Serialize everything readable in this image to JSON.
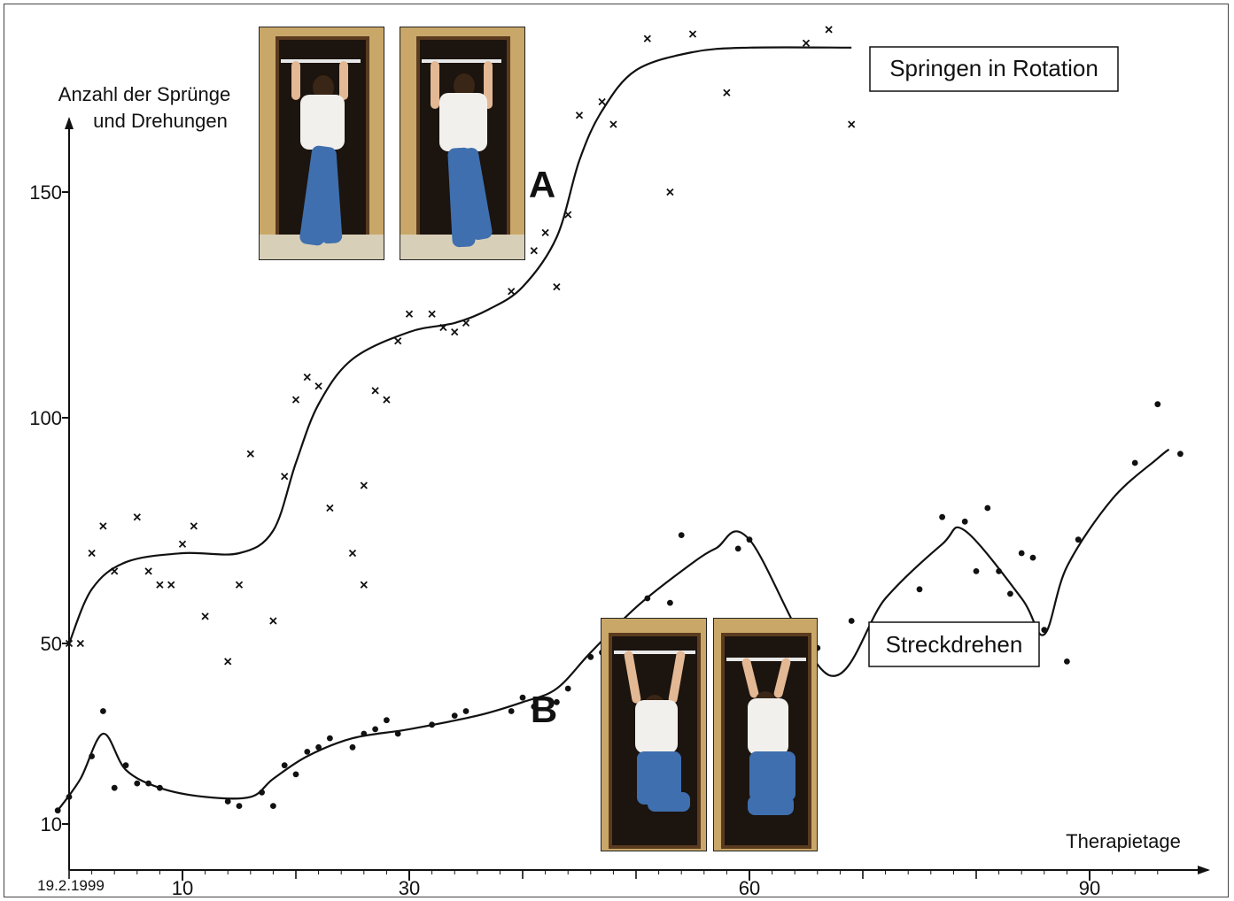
{
  "chart_data": {
    "type": "scatter",
    "ylabel_line1": "Anzahl der Sprünge",
    "ylabel_line2": "und Drehungen",
    "xlabel": "Therapietage",
    "x_ticks": [
      "10",
      "30",
      "60",
      "90"
    ],
    "x_tick_values": [
      10,
      30,
      60,
      90
    ],
    "x_start_label": "19.2.1999",
    "y_ticks": [
      "10",
      "50",
      "100",
      "150"
    ],
    "y_tick_values": [
      10,
      50,
      100,
      150
    ],
    "series": [
      {
        "name": "Springen in Rotation",
        "letter": "A",
        "marker": "x",
        "points": [
          [
            0,
            50
          ],
          [
            1,
            50
          ],
          [
            2,
            70
          ],
          [
            3,
            76
          ],
          [
            4,
            66
          ],
          [
            6,
            78
          ],
          [
            7,
            66
          ],
          [
            8,
            63
          ],
          [
            9,
            63
          ],
          [
            10,
            72
          ],
          [
            11,
            76
          ],
          [
            12,
            56
          ],
          [
            14,
            46
          ],
          [
            15,
            63
          ],
          [
            16,
            92
          ],
          [
            18,
            55
          ],
          [
            19,
            87
          ],
          [
            20,
            104
          ],
          [
            21,
            109
          ],
          [
            22,
            107
          ],
          [
            23,
            80
          ],
          [
            25,
            70
          ],
          [
            26,
            85
          ],
          [
            26,
            63
          ],
          [
            27,
            106
          ],
          [
            28,
            104
          ],
          [
            29,
            117
          ],
          [
            30,
            123
          ],
          [
            32,
            123
          ],
          [
            33,
            120
          ],
          [
            34,
            119
          ],
          [
            35,
            121
          ],
          [
            39,
            128
          ],
          [
            41,
            137
          ],
          [
            42,
            141
          ],
          [
            43,
            129
          ],
          [
            44,
            145
          ],
          [
            45,
            167
          ],
          [
            47,
            170
          ],
          [
            48,
            165
          ],
          [
            51,
            184
          ],
          [
            53,
            150
          ],
          [
            55,
            185
          ],
          [
            58,
            172
          ],
          [
            65,
            183
          ],
          [
            67,
            186
          ],
          [
            69,
            165
          ]
        ],
        "fit": [
          [
            0,
            50
          ],
          [
            2,
            62
          ],
          [
            5,
            68
          ],
          [
            10,
            70
          ],
          [
            15,
            70
          ],
          [
            18,
            75
          ],
          [
            20,
            90
          ],
          [
            22,
            103
          ],
          [
            25,
            113
          ],
          [
            30,
            119
          ],
          [
            34,
            121
          ],
          [
            37,
            124
          ],
          [
            40,
            129
          ],
          [
            43,
            140
          ],
          [
            45,
            157
          ],
          [
            47,
            168
          ],
          [
            50,
            177
          ],
          [
            55,
            181
          ],
          [
            60,
            182
          ],
          [
            69,
            182
          ]
        ]
      },
      {
        "name": "Streckdrehen",
        "letter": "B",
        "marker": "dot",
        "points": [
          [
            -1,
            13
          ],
          [
            0,
            16
          ],
          [
            2,
            25
          ],
          [
            3,
            35
          ],
          [
            4,
            18
          ],
          [
            5,
            23
          ],
          [
            6,
            19
          ],
          [
            7,
            19
          ],
          [
            8,
            18
          ],
          [
            14,
            15
          ],
          [
            15,
            14
          ],
          [
            17,
            17
          ],
          [
            18,
            14
          ],
          [
            19,
            23
          ],
          [
            20,
            21
          ],
          [
            21,
            26
          ],
          [
            22,
            27
          ],
          [
            23,
            29
          ],
          [
            25,
            27
          ],
          [
            26,
            30
          ],
          [
            27,
            31
          ],
          [
            28,
            33
          ],
          [
            29,
            30
          ],
          [
            32,
            32
          ],
          [
            34,
            34
          ],
          [
            35,
            35
          ],
          [
            39,
            35
          ],
          [
            40,
            38
          ],
          [
            41,
            36
          ],
          [
            43,
            37
          ],
          [
            44,
            40
          ],
          [
            46,
            47
          ],
          [
            47,
            48
          ],
          [
            49,
            52
          ],
          [
            51,
            60
          ],
          [
            53,
            59
          ],
          [
            54,
            74
          ],
          [
            59,
            71
          ],
          [
            60,
            73
          ],
          [
            65,
            45
          ],
          [
            66,
            49
          ],
          [
            69,
            55
          ],
          [
            75,
            62
          ],
          [
            77,
            78
          ],
          [
            79,
            77
          ],
          [
            80,
            66
          ],
          [
            81,
            80
          ],
          [
            82,
            66
          ],
          [
            83,
            61
          ],
          [
            84,
            70
          ],
          [
            85,
            69
          ],
          [
            86,
            53
          ],
          [
            88,
            46
          ],
          [
            89,
            73
          ],
          [
            94,
            90
          ],
          [
            96,
            103
          ],
          [
            98,
            92
          ]
        ],
        "fit": [
          [
            -1,
            13
          ],
          [
            1,
            20
          ],
          [
            3,
            30
          ],
          [
            5,
            22
          ],
          [
            8,
            18
          ],
          [
            12,
            16
          ],
          [
            16,
            16
          ],
          [
            18,
            20
          ],
          [
            21,
            25
          ],
          [
            25,
            29
          ],
          [
            30,
            31
          ],
          [
            36,
            34
          ],
          [
            40,
            37
          ],
          [
            43,
            40
          ],
          [
            46,
            48
          ],
          [
            50,
            58
          ],
          [
            54,
            66
          ],
          [
            57,
            71
          ],
          [
            60,
            73
          ],
          [
            67,
            43
          ],
          [
            72,
            60
          ],
          [
            77,
            72
          ],
          [
            79,
            75
          ],
          [
            84,
            60
          ],
          [
            86,
            52
          ],
          [
            88,
            67
          ],
          [
            92,
            82
          ],
          [
            96,
            91
          ],
          [
            97,
            93
          ]
        ]
      }
    ],
    "xlim": [
      -1,
      101
    ],
    "ylim": [
      0,
      190
    ]
  },
  "colors": {
    "line": "#111111",
    "marker": "#111111",
    "frame": "#444444"
  },
  "images": [
    "klimmzug-foto",
    "klimmzug-foto",
    "haengen-foto",
    "haengen-foto"
  ]
}
